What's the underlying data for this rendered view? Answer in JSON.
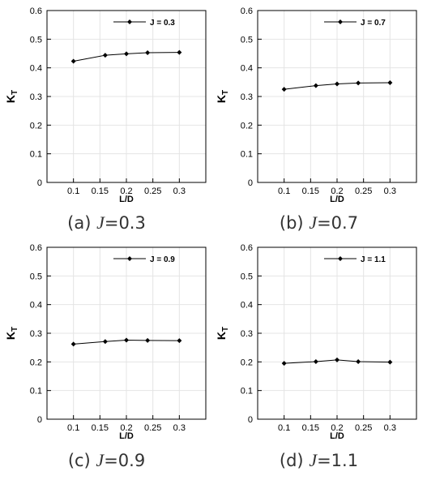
{
  "chart_data": [
    {
      "type": "line",
      "xlabel": "L/D",
      "ylabel_main": "K",
      "ylabel_sub": "T",
      "xlim": [
        0.05,
        0.35
      ],
      "ylim": [
        0,
        0.6
      ],
      "xticks": [
        "0.1",
        "0.15",
        "0.2",
        "0.25",
        "0.3"
      ],
      "yticks": [
        "0",
        "0.1",
        "0.2",
        "0.3",
        "0.4",
        "0.5",
        "0.6"
      ],
      "grid": true,
      "legend_position": "top-right",
      "series": [
        {
          "name": "J = 0.3",
          "color": "#000000",
          "marker": "diamond",
          "x": [
            0.1,
            0.16,
            0.2,
            0.24,
            0.3
          ],
          "y": [
            0.423,
            0.444,
            0.449,
            0.453,
            0.454
          ]
        }
      ],
      "caption": {
        "label": "(a) ",
        "symbol": "J",
        "value": "=0.3"
      }
    },
    {
      "type": "line",
      "xlabel": "L/D",
      "ylabel_main": "K",
      "ylabel_sub": "T",
      "xlim": [
        0.05,
        0.35
      ],
      "ylim": [
        0,
        0.6
      ],
      "xticks": [
        "0.1",
        "0.15",
        "0.2",
        "0.25",
        "0.3"
      ],
      "yticks": [
        "0",
        "0.1",
        "0.2",
        "0.3",
        "0.4",
        "0.5",
        "0.6"
      ],
      "grid": true,
      "legend_position": "top-right",
      "series": [
        {
          "name": "J = 0.7",
          "color": "#000000",
          "marker": "diamond",
          "x": [
            0.1,
            0.16,
            0.2,
            0.24,
            0.3
          ],
          "y": [
            0.325,
            0.338,
            0.344,
            0.347,
            0.348
          ]
        }
      ],
      "caption": {
        "label": "(b) ",
        "symbol": "J",
        "value": "=0.7"
      }
    },
    {
      "type": "line",
      "xlabel": "L/D",
      "ylabel_main": "K",
      "ylabel_sub": "T",
      "xlim": [
        0.05,
        0.35
      ],
      "ylim": [
        0,
        0.6
      ],
      "xticks": [
        "0.1",
        "0.15",
        "0.2",
        "0.25",
        "0.3"
      ],
      "yticks": [
        "0",
        "0.1",
        "0.2",
        "0.3",
        "0.4",
        "0.5",
        "0.6"
      ],
      "grid": true,
      "legend_position": "top-right",
      "series": [
        {
          "name": "J = 0.9",
          "color": "#000000",
          "marker": "diamond",
          "x": [
            0.1,
            0.16,
            0.2,
            0.24,
            0.3
          ],
          "y": [
            0.262,
            0.271,
            0.276,
            0.275,
            0.274
          ]
        }
      ],
      "caption": {
        "label": "(c) ",
        "symbol": "J",
        "value": "=0.9"
      }
    },
    {
      "type": "line",
      "xlabel": "L/D",
      "ylabel_main": "K",
      "ylabel_sub": "T",
      "xlim": [
        0.05,
        0.35
      ],
      "ylim": [
        0,
        0.6
      ],
      "xticks": [
        "0.1",
        "0.15",
        "0.2",
        "0.25",
        "0.3"
      ],
      "yticks": [
        "0",
        "0.1",
        "0.2",
        "0.3",
        "0.4",
        "0.5",
        "0.6"
      ],
      "grid": true,
      "legend_position": "top-right",
      "series": [
        {
          "name": "J = 1.1",
          "color": "#000000",
          "marker": "diamond",
          "x": [
            0.1,
            0.16,
            0.2,
            0.24,
            0.3
          ],
          "y": [
            0.195,
            0.201,
            0.207,
            0.201,
            0.199
          ]
        }
      ],
      "caption": {
        "label": "(d) ",
        "symbol": "J",
        "value": "=1.1"
      }
    }
  ]
}
